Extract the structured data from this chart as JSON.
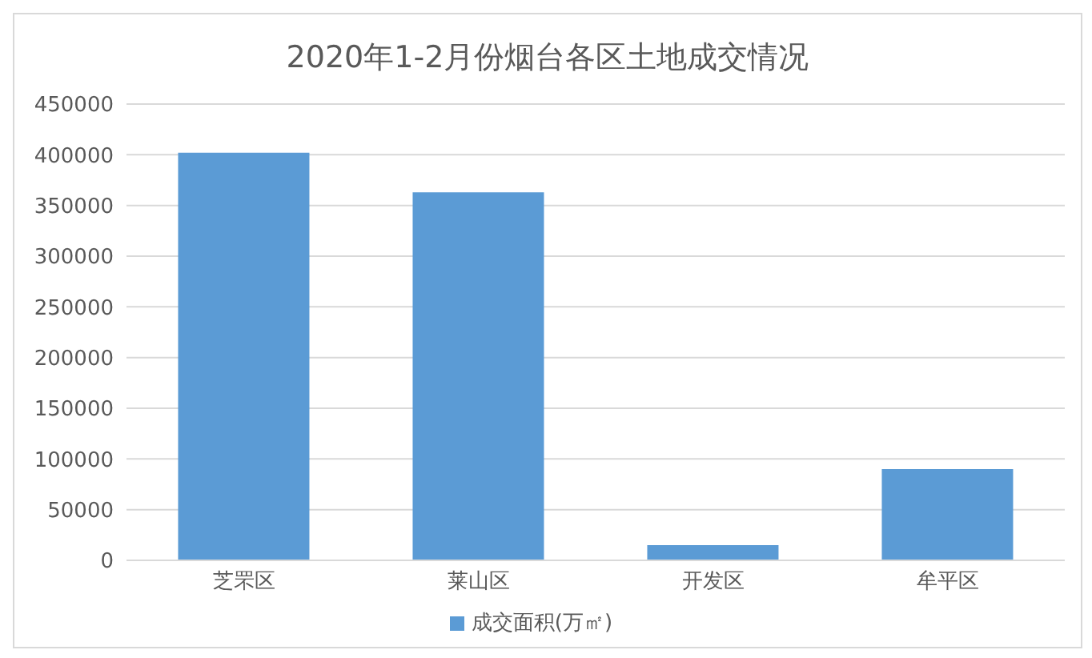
{
  "chart_data": {
    "type": "bar",
    "title": "2020年1-2月份烟台各区土地成交情况",
    "categories": [
      "芝罘区",
      "莱山区",
      "开发区",
      "牟平区"
    ],
    "series": [
      {
        "name": "成交面积(万㎡)",
        "color": "#5b9bd5",
        "values": [
          402000,
          363000,
          15000,
          90000
        ]
      }
    ],
    "ylim": [
      0,
      450000
    ],
    "yticks": [
      0,
      50000,
      100000,
      150000,
      200000,
      250000,
      300000,
      350000,
      400000,
      450000
    ],
    "grid": "y",
    "legend": "bottom"
  }
}
